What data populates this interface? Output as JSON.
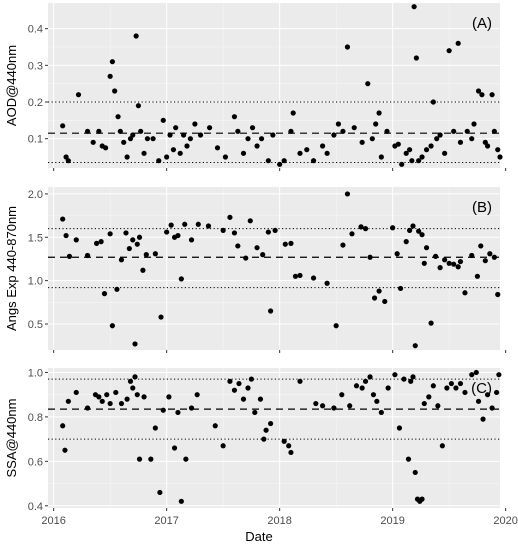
{
  "figure": {
    "x_axis_label": "Date",
    "x_ticks": [
      {
        "label": "2016",
        "value": 2016
      },
      {
        "label": "2017",
        "value": 2017
      },
      {
        "label": "2018",
        "value": 2018
      },
      {
        "label": "2019",
        "value": 2019
      },
      {
        "label": "2020",
        "value": 2020
      }
    ]
  },
  "chart_data": [
    {
      "type": "scatter",
      "tag": "(A)",
      "ylabel": "AOD@440nm",
      "ylim": [
        0.02,
        0.47
      ],
      "yticks": [
        0.1,
        0.2,
        0.3,
        0.4
      ],
      "ytick_labels": [
        "0.1",
        "0.2",
        "0.3",
        "0.4"
      ],
      "xlim": [
        2015.95,
        2019.95
      ],
      "mean": 0.115,
      "band": [
        0.035,
        0.2
      ],
      "grid": true,
      "points": [
        [
          2016.08,
          0.135
        ],
        [
          2016.11,
          0.05
        ],
        [
          2016.13,
          0.04
        ],
        [
          2016.22,
          0.22
        ],
        [
          2016.3,
          0.12
        ],
        [
          2016.35,
          0.09
        ],
        [
          2016.4,
          0.12
        ],
        [
          2016.43,
          0.08
        ],
        [
          2016.46,
          0.075
        ],
        [
          2016.5,
          0.27
        ],
        [
          2016.52,
          0.31
        ],
        [
          2016.54,
          0.23
        ],
        [
          2016.57,
          0.16
        ],
        [
          2016.59,
          0.12
        ],
        [
          2016.62,
          0.09
        ],
        [
          2016.65,
          0.05
        ],
        [
          2016.68,
          0.1
        ],
        [
          2016.7,
          0.11
        ],
        [
          2016.73,
          0.38
        ],
        [
          2016.75,
          0.19
        ],
        [
          2016.77,
          0.12
        ],
        [
          2016.8,
          0.06
        ],
        [
          2016.83,
          0.1
        ],
        [
          2016.88,
          0.1
        ],
        [
          2016.93,
          0.04
        ],
        [
          2016.97,
          0.15
        ],
        [
          2017.0,
          0.05
        ],
        [
          2017.03,
          0.11
        ],
        [
          2017.06,
          0.07
        ],
        [
          2017.08,
          0.13
        ],
        [
          2017.12,
          0.06
        ],
        [
          2017.15,
          0.11
        ],
        [
          2017.18,
          0.08
        ],
        [
          2017.21,
          0.1
        ],
        [
          2017.25,
          0.14
        ],
        [
          2017.3,
          0.11
        ],
        [
          2017.38,
          0.13
        ],
        [
          2017.45,
          0.075
        ],
        [
          2017.52,
          0.05
        ],
        [
          2017.6,
          0.16
        ],
        [
          2017.63,
          0.12
        ],
        [
          2017.68,
          0.06
        ],
        [
          2017.72,
          0.1
        ],
        [
          2017.76,
          0.13
        ],
        [
          2017.8,
          0.08
        ],
        [
          2017.84,
          0.1
        ],
        [
          2017.9,
          0.04
        ],
        [
          2017.94,
          0.11
        ],
        [
          2018.0,
          0.03
        ],
        [
          2018.04,
          0.04
        ],
        [
          2018.1,
          0.12
        ],
        [
          2018.12,
          0.17
        ],
        [
          2018.18,
          0.06
        ],
        [
          2018.24,
          0.07
        ],
        [
          2018.3,
          0.04
        ],
        [
          2018.38,
          0.08
        ],
        [
          2018.42,
          0.06
        ],
        [
          2018.48,
          0.11
        ],
        [
          2018.52,
          0.14
        ],
        [
          2018.56,
          0.12
        ],
        [
          2018.6,
          0.35
        ],
        [
          2018.66,
          0.13
        ],
        [
          2018.73,
          0.09
        ],
        [
          2018.78,
          0.25
        ],
        [
          2018.82,
          0.1
        ],
        [
          2018.85,
          0.14
        ],
        [
          2018.88,
          0.17
        ],
        [
          2018.9,
          0.05
        ],
        [
          2018.95,
          0.12
        ],
        [
          2019.02,
          0.08
        ],
        [
          2019.05,
          0.085
        ],
        [
          2019.08,
          0.03
        ],
        [
          2019.12,
          0.06
        ],
        [
          2019.15,
          0.07
        ],
        [
          2019.17,
          0.04
        ],
        [
          2019.19,
          0.46
        ],
        [
          2019.21,
          0.32
        ],
        [
          2019.23,
          0.04
        ],
        [
          2019.26,
          0.05
        ],
        [
          2019.3,
          0.07
        ],
        [
          2019.34,
          0.08
        ],
        [
          2019.36,
          0.2
        ],
        [
          2019.39,
          0.1
        ],
        [
          2019.42,
          0.11
        ],
        [
          2019.46,
          0.06
        ],
        [
          2019.5,
          0.34
        ],
        [
          2019.54,
          0.12
        ],
        [
          2019.58,
          0.36
        ],
        [
          2019.6,
          0.09
        ],
        [
          2019.66,
          0.12
        ],
        [
          2019.7,
          0.1
        ],
        [
          2019.72,
          0.14
        ],
        [
          2019.76,
          0.23
        ],
        [
          2019.79,
          0.22
        ],
        [
          2019.82,
          0.09
        ],
        [
          2019.84,
          0.08
        ],
        [
          2019.88,
          0.22
        ],
        [
          2019.9,
          0.12
        ],
        [
          2019.93,
          0.07
        ],
        [
          2019.95,
          0.05
        ]
      ]
    },
    {
      "type": "scatter",
      "tag": "(B)",
      "ylabel": "Angs Exp 440-870nm",
      "ylim": [
        0.2,
        2.08
      ],
      "yticks": [
        0.5,
        1.0,
        1.5,
        2.0
      ],
      "ytick_labels": [
        "0.5",
        "1.0",
        "1.5",
        "2.0"
      ],
      "xlim": [
        2015.95,
        2019.95
      ],
      "mean": 1.27,
      "band": [
        0.92,
        1.6
      ],
      "grid": true,
      "points": [
        [
          2016.08,
          1.71
        ],
        [
          2016.11,
          1.52
        ],
        [
          2016.14,
          1.28
        ],
        [
          2016.2,
          1.47
        ],
        [
          2016.3,
          1.29
        ],
        [
          2016.38,
          1.43
        ],
        [
          2016.42,
          1.45
        ],
        [
          2016.45,
          0.85
        ],
        [
          2016.5,
          1.54
        ],
        [
          2016.52,
          0.48
        ],
        [
          2016.56,
          0.9
        ],
        [
          2016.6,
          1.24
        ],
        [
          2016.64,
          1.55
        ],
        [
          2016.67,
          1.37
        ],
        [
          2016.7,
          1.47
        ],
        [
          2016.72,
          0.27
        ],
        [
          2016.74,
          1.42
        ],
        [
          2016.76,
          1.5
        ],
        [
          2016.79,
          1.12
        ],
        [
          2016.82,
          1.3
        ],
        [
          2016.9,
          1.31
        ],
        [
          2016.95,
          0.58
        ],
        [
          2017.0,
          1.56
        ],
        [
          2017.04,
          1.64
        ],
        [
          2017.07,
          1.5
        ],
        [
          2017.1,
          1.52
        ],
        [
          2017.13,
          1.02
        ],
        [
          2017.16,
          1.65
        ],
        [
          2017.22,
          1.47
        ],
        [
          2017.28,
          1.65
        ],
        [
          2017.37,
          1.63
        ],
        [
          2017.5,
          1.58
        ],
        [
          2017.56,
          1.73
        ],
        [
          2017.6,
          1.55
        ],
        [
          2017.63,
          1.4
        ],
        [
          2017.7,
          1.26
        ],
        [
          2017.74,
          1.69
        ],
        [
          2017.8,
          1.38
        ],
        [
          2017.85,
          1.3
        ],
        [
          2017.9,
          1.56
        ],
        [
          2017.92,
          0.65
        ],
        [
          2017.96,
          1.58
        ],
        [
          2018.05,
          1.42
        ],
        [
          2018.1,
          1.43
        ],
        [
          2018.14,
          1.05
        ],
        [
          2018.18,
          1.06
        ],
        [
          2018.3,
          1.03
        ],
        [
          2018.42,
          0.97
        ],
        [
          2018.5,
          0.48
        ],
        [
          2018.56,
          1.41
        ],
        [
          2018.6,
          2.0
        ],
        [
          2018.64,
          1.54
        ],
        [
          2018.72,
          1.62
        ],
        [
          2018.76,
          1.6
        ],
        [
          2018.8,
          1.27
        ],
        [
          2018.84,
          0.8
        ],
        [
          2018.88,
          0.88
        ],
        [
          2018.93,
          0.76
        ],
        [
          2019.0,
          1.61
        ],
        [
          2019.04,
          1.31
        ],
        [
          2019.07,
          0.91
        ],
        [
          2019.12,
          1.45
        ],
        [
          2019.15,
          1.58
        ],
        [
          2019.18,
          1.63
        ],
        [
          2019.2,
          0.25
        ],
        [
          2019.23,
          1.57
        ],
        [
          2019.26,
          1.53
        ],
        [
          2019.28,
          1.2
        ],
        [
          2019.3,
          1.38
        ],
        [
          2019.34,
          0.51
        ],
        [
          2019.38,
          1.28
        ],
        [
          2019.42,
          1.15
        ],
        [
          2019.46,
          1.24
        ],
        [
          2019.5,
          1.2
        ],
        [
          2019.54,
          1.19
        ],
        [
          2019.58,
          1.16
        ],
        [
          2019.6,
          1.22
        ],
        [
          2019.64,
          0.86
        ],
        [
          2019.7,
          1.29
        ],
        [
          2019.75,
          1.05
        ],
        [
          2019.78,
          1.4
        ],
        [
          2019.82,
          1.23
        ],
        [
          2019.86,
          1.31
        ],
        [
          2019.9,
          1.27
        ],
        [
          2019.93,
          0.84
        ]
      ]
    },
    {
      "type": "scatter",
      "tag": "(C)",
      "ylabel": "SSA@440nm",
      "ylim": [
        0.39,
        1.02
      ],
      "yticks": [
        0.4,
        0.6,
        0.8,
        1.0
      ],
      "ytick_labels": [
        "0.4",
        "0.6",
        "0.8",
        "1.0"
      ],
      "xlim": [
        2015.95,
        2019.95
      ],
      "mean": 0.835,
      "band": [
        0.7,
        0.97
      ],
      "grid": true,
      "points": [
        [
          2016.08,
          0.76
        ],
        [
          2016.1,
          0.65
        ],
        [
          2016.13,
          0.87
        ],
        [
          2016.2,
          0.91
        ],
        [
          2016.3,
          0.84
        ],
        [
          2016.37,
          0.9
        ],
        [
          2016.4,
          0.89
        ],
        [
          2016.43,
          0.87
        ],
        [
          2016.47,
          0.9
        ],
        [
          2016.5,
          0.86
        ],
        [
          2016.55,
          0.91
        ],
        [
          2016.6,
          0.86
        ],
        [
          2016.65,
          0.88
        ],
        [
          2016.68,
          0.96
        ],
        [
          2016.7,
          0.93
        ],
        [
          2016.72,
          0.98
        ],
        [
          2016.74,
          0.9
        ],
        [
          2016.76,
          0.61
        ],
        [
          2016.8,
          0.89
        ],
        [
          2016.86,
          0.61
        ],
        [
          2016.9,
          0.75
        ],
        [
          2016.94,
          0.46
        ],
        [
          2016.97,
          0.83
        ],
        [
          2017.02,
          0.89
        ],
        [
          2017.07,
          0.66
        ],
        [
          2017.1,
          0.82
        ],
        [
          2017.13,
          0.42
        ],
        [
          2017.17,
          0.61
        ],
        [
          2017.22,
          0.84
        ],
        [
          2017.27,
          0.9
        ],
        [
          2017.43,
          0.76
        ],
        [
          2017.5,
          0.67
        ],
        [
          2017.56,
          0.96
        ],
        [
          2017.6,
          0.92
        ],
        [
          2017.64,
          0.95
        ],
        [
          2017.68,
          0.88
        ],
        [
          2017.72,
          0.93
        ],
        [
          2017.75,
          0.97
        ],
        [
          2017.78,
          0.82
        ],
        [
          2017.83,
          0.88
        ],
        [
          2017.86,
          0.7
        ],
        [
          2017.88,
          0.74
        ],
        [
          2017.92,
          0.77
        ],
        [
          2018.04,
          0.69
        ],
        [
          2018.08,
          0.67
        ],
        [
          2018.1,
          0.64
        ],
        [
          2018.18,
          0.96
        ],
        [
          2018.32,
          0.86
        ],
        [
          2018.38,
          0.85
        ],
        [
          2018.48,
          0.84
        ],
        [
          2018.55,
          0.9
        ],
        [
          2018.62,
          0.85
        ],
        [
          2018.68,
          0.94
        ],
        [
          2018.73,
          0.93
        ],
        [
          2018.76,
          0.96
        ],
        [
          2018.8,
          0.98
        ],
        [
          2018.83,
          0.9
        ],
        [
          2018.86,
          0.87
        ],
        [
          2018.9,
          0.82
        ],
        [
          2018.96,
          0.93
        ],
        [
          2019.02,
          0.99
        ],
        [
          2019.06,
          0.75
        ],
        [
          2019.1,
          0.97
        ],
        [
          2019.14,
          0.61
        ],
        [
          2019.16,
          0.96
        ],
        [
          2019.18,
          0.98
        ],
        [
          2019.2,
          0.55
        ],
        [
          2019.22,
          0.43
        ],
        [
          2019.24,
          0.42
        ],
        [
          2019.26,
          0.43
        ],
        [
          2019.28,
          0.86
        ],
        [
          2019.32,
          0.89
        ],
        [
          2019.36,
          0.94
        ],
        [
          2019.4,
          0.85
        ],
        [
          2019.44,
          0.67
        ],
        [
          2019.48,
          0.93
        ],
        [
          2019.52,
          0.95
        ],
        [
          2019.56,
          0.93
        ],
        [
          2019.6,
          0.95
        ],
        [
          2019.64,
          0.91
        ],
        [
          2019.7,
          0.99
        ],
        [
          2019.74,
          1.0
        ],
        [
          2019.76,
          0.87
        ],
        [
          2019.8,
          0.79
        ],
        [
          2019.84,
          0.9
        ],
        [
          2019.88,
          0.84
        ],
        [
          2019.92,
          0.91
        ],
        [
          2019.94,
          0.99
        ]
      ]
    }
  ]
}
